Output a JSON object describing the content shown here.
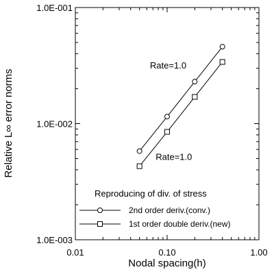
{
  "chart_data": {
    "type": "line",
    "xscale": "log",
    "yscale": "log",
    "xlim": [
      0.01,
      1.0
    ],
    "ylim": [
      0.001,
      0.1
    ],
    "xlabel": "Nodal spacing(h)",
    "ylabel": "Relative L∞ error norms",
    "x_tick_labels": [
      "0.01",
      "0.10",
      "1.00"
    ],
    "y_tick_labels": [
      "1.0E-003",
      "1.0E-002",
      "1.0E-001"
    ],
    "x_ticks": [
      0.01,
      0.1,
      1.0
    ],
    "y_ticks": [
      0.001,
      0.01,
      0.1
    ],
    "legend_title": "Reproducing of div. of stress",
    "legend_position": "bottom-right",
    "series": [
      {
        "name": "2nd order deriv.(conv.)",
        "marker": "circle",
        "x": [
          0.05,
          0.1,
          0.2,
          0.4
        ],
        "y": [
          0.0058,
          0.0115,
          0.023,
          0.046
        ]
      },
      {
        "name": "1st order double deriv.(new)",
        "marker": "square",
        "x": [
          0.05,
          0.1,
          0.2,
          0.4
        ],
        "y": [
          0.0043,
          0.0085,
          0.017,
          0.034
        ]
      }
    ],
    "annotations": [
      {
        "text": "Rate=1.0",
        "x": 0.065,
        "y": 0.032
      },
      {
        "text": "Rate=1.0",
        "x": 0.075,
        "y": 0.0052
      }
    ]
  }
}
